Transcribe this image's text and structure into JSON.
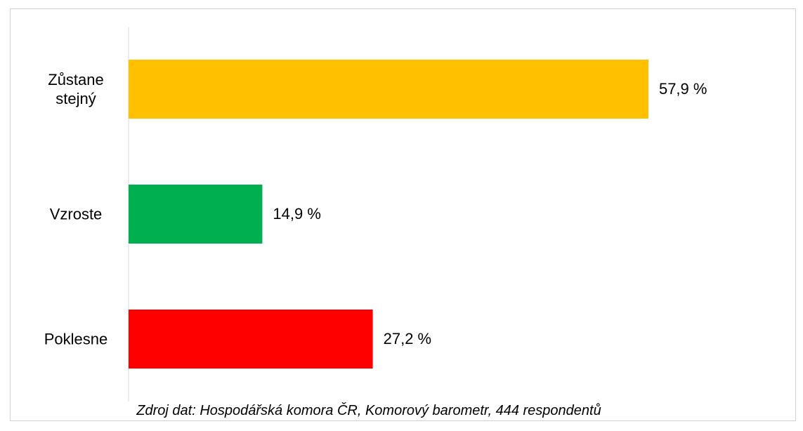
{
  "chart_data": {
    "type": "hbar",
    "categories": [
      "Zůstane stejný",
      "Vzroste",
      "Poklesne"
    ],
    "values": [
      57.9,
      14.9,
      27.2
    ],
    "value_labels": [
      "57,9 %",
      "14,9 %",
      "27,2 %"
    ],
    "colors": [
      "#ffc000",
      "#00b050",
      "#ff0000"
    ],
    "note": "Zdroj dat: Hospodářská komora ČR, Komorový barometr, 444 respondentů"
  }
}
